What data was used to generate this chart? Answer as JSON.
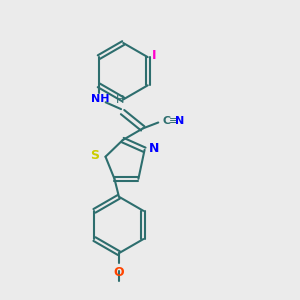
{
  "background_color": "#ebebeb",
  "bond_color": "#2d6e6e",
  "label_colors": {
    "N": "#0000ff",
    "S": "#cccc00",
    "O": "#ff4400",
    "I": "#ff00cc",
    "H": "#2d6e6e",
    "CN_label": "#0000ff"
  },
  "figsize": [
    3.0,
    3.0
  ],
  "dpi": 100
}
